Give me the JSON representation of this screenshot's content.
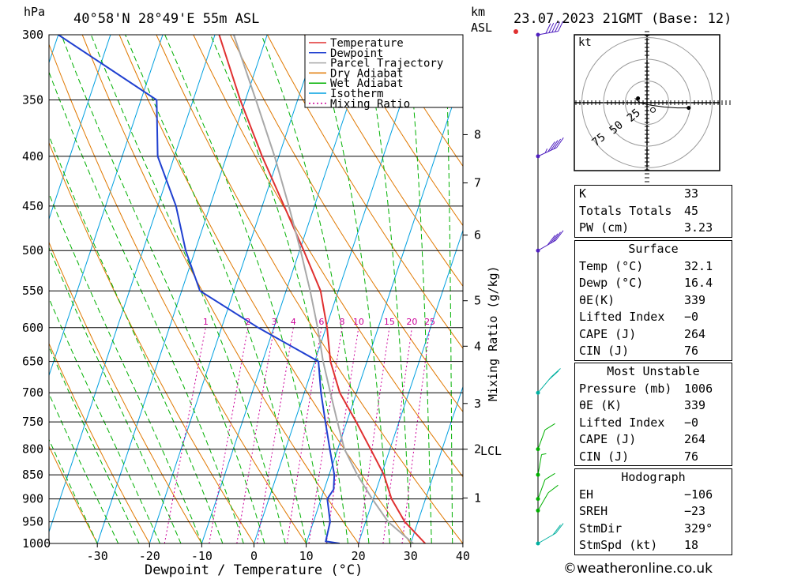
{
  "header": {
    "hpa_unit": "hPa",
    "location": "40°58'N  28°49'E  55m  ASL",
    "km_unit": "km",
    "asl_unit": "ASL",
    "datetime": "23.07.2023  21GMT  (Base: 12)"
  },
  "colors": {
    "temperature": "#e03030",
    "dewpoint": "#2040d0",
    "parcel": "#a8a8a8",
    "dry_adiabat": "#e07800",
    "wet_adiabat": "#00b000",
    "isotherm": "#00a0e0",
    "mixing_ratio": "#cc0099"
  },
  "chart_data": {
    "type": "line",
    "title": "40°58'N 28°49'E 55m ASL",
    "xlabel": "Dewpoint / Temperature (°C)",
    "ylabel": "hPa",
    "y2label": "Mixing Ratio (g/kg)",
    "xlim": [
      -40,
      40
    ],
    "x_ticks": [
      -30,
      -20,
      -10,
      0,
      10,
      20,
      30,
      40
    ],
    "pressure_levels": [
      300,
      350,
      400,
      450,
      500,
      550,
      600,
      650,
      700,
      750,
      800,
      850,
      900,
      950,
      1000
    ],
    "km_ticks": [
      {
        "label": "8",
        "p": 380
      },
      {
        "label": "7",
        "p": 426
      },
      {
        "label": "6",
        "p": 482
      },
      {
        "label": "5",
        "p": 563
      },
      {
        "label": "4",
        "p": 627
      },
      {
        "label": "3",
        "p": 718
      },
      {
        "label": "2",
        "p": 800
      },
      {
        "label": "1",
        "p": 898
      }
    ],
    "lcl_label": "LCL",
    "lcl_pressure": 799,
    "mixing_ratio_labels": [
      "1",
      "2",
      "3",
      "4",
      "6",
      "8",
      "10",
      "15",
      "20",
      "25"
    ],
    "mixing_ratio_values": [
      1,
      2,
      3,
      4,
      6,
      8,
      10,
      15,
      20,
      25
    ],
    "legend": [
      "Temperature",
      "Dewpoint",
      "Parcel Trajectory",
      "Dry Adiabat",
      "Wet Adiabat",
      "Isotherm",
      "Mixing Ratio"
    ],
    "series": [
      {
        "name": "Temperature",
        "points": [
          {
            "p": 1000,
            "t": 32.8
          },
          {
            "p": 950,
            "t": 27.5
          },
          {
            "p": 900,
            "t": 23.5
          },
          {
            "p": 850,
            "t": 20.5
          },
          {
            "p": 800,
            "t": 16.3
          },
          {
            "p": 750,
            "t": 11.8
          },
          {
            "p": 700,
            "t": 6.8
          },
          {
            "p": 650,
            "t": 3.0
          },
          {
            "p": 600,
            "t": 0.2
          },
          {
            "p": 550,
            "t": -3.4
          },
          {
            "p": 500,
            "t": -9.2
          },
          {
            "p": 450,
            "t": -15.8
          },
          {
            "p": 400,
            "t": -23.2
          },
          {
            "p": 350,
            "t": -31.0
          },
          {
            "p": 300,
            "t": -39.2
          }
        ]
      },
      {
        "name": "Dewpoint",
        "points": [
          {
            "p": 1000,
            "t": 16.4
          },
          {
            "p": 995,
            "t": 13.6
          },
          {
            "p": 950,
            "t": 13.2
          },
          {
            "p": 900,
            "t": 11.2
          },
          {
            "p": 880,
            "t": 11.8
          },
          {
            "p": 850,
            "t": 11.0
          },
          {
            "p": 800,
            "t": 8.5
          },
          {
            "p": 750,
            "t": 5.9
          },
          {
            "p": 700,
            "t": 3.2
          },
          {
            "p": 650,
            "t": 0.7
          },
          {
            "p": 600,
            "t": -13.0
          },
          {
            "p": 550,
            "t": -26.5
          },
          {
            "p": 500,
            "t": -31.8
          },
          {
            "p": 450,
            "t": -36.5
          },
          {
            "p": 400,
            "t": -43.2
          },
          {
            "p": 350,
            "t": -47.0
          },
          {
            "p": 300,
            "t": -70.0
          }
        ]
      },
      {
        "name": "Parcel Trajectory",
        "points": [
          {
            "p": 1000,
            "t": 30.5
          },
          {
            "p": 950,
            "t": 24.3
          },
          {
            "p": 900,
            "t": 19.8
          },
          {
            "p": 850,
            "t": 15.4
          },
          {
            "p": 800,
            "t": 11.3
          },
          {
            "p": 750,
            "t": 8.2
          },
          {
            "p": 700,
            "t": 5.0
          },
          {
            "p": 650,
            "t": 1.6
          },
          {
            "p": 600,
            "t": -1.6
          },
          {
            "p": 550,
            "t": -5.4
          },
          {
            "p": 500,
            "t": -9.8
          },
          {
            "p": 450,
            "t": -14.9
          },
          {
            "p": 400,
            "t": -20.8
          },
          {
            "p": 350,
            "t": -28.0
          },
          {
            "p": 300,
            "t": -36.4
          }
        ]
      }
    ],
    "wind_barbs": [
      {
        "p": 300,
        "dir": 280,
        "kt": 50
      },
      {
        "p": 400,
        "dir": 295,
        "kt": 45
      },
      {
        "p": 500,
        "dir": 300,
        "kt": 40
      },
      {
        "p": 700,
        "dir": 320,
        "kt": 20
      },
      {
        "p": 800,
        "dir": 340,
        "kt": 10
      },
      {
        "p": 850,
        "dir": 350,
        "kt": 5
      },
      {
        "p": 900,
        "dir": 340,
        "kt": 10
      },
      {
        "p": 925,
        "dir": 330,
        "kt": 10
      },
      {
        "p": 1000,
        "dir": 300,
        "kt": 20
      }
    ]
  },
  "hodograph": {
    "unit": "kt",
    "ring_labels": [
      "25",
      "50",
      "75"
    ],
    "ring_values": [
      25,
      50,
      75
    ],
    "points": [
      {
        "u": -14,
        "v": 5
      },
      {
        "u": -8,
        "v": 0
      },
      {
        "u": 0,
        "v": -2
      },
      {
        "u": 5,
        "v": -3
      },
      {
        "u": 20,
        "v": -5
      },
      {
        "u": 35,
        "v": -6
      },
      {
        "u": 48,
        "v": -6
      }
    ]
  },
  "indices": {
    "rows": [
      {
        "label": "K",
        "value": "33"
      },
      {
        "label": "Totals Totals",
        "value": "45"
      },
      {
        "label": "PW (cm)",
        "value": "3.23"
      }
    ],
    "surface": {
      "title": "Surface",
      "rows": [
        {
          "label": "Temp (°C)",
          "value": "32.1"
        },
        {
          "label": "Dewp (°C)",
          "value": "16.4"
        },
        {
          "label": "θE(K)",
          "value": "339"
        },
        {
          "label": "Lifted Index",
          "value": "−0"
        },
        {
          "label": "CAPE (J)",
          "value": "264"
        },
        {
          "label": "CIN (J)",
          "value": "76"
        }
      ]
    },
    "most_unstable": {
      "title": "Most Unstable",
      "rows": [
        {
          "label": "Pressure (mb)",
          "value": "1006"
        },
        {
          "label": "θE (K)",
          "value": "339"
        },
        {
          "label": "Lifted Index",
          "value": "−0"
        },
        {
          "label": "CAPE (J)",
          "value": "264"
        },
        {
          "label": "CIN (J)",
          "value": "76"
        }
      ]
    },
    "hodograph": {
      "title": "Hodograph",
      "rows": [
        {
          "label": "EH",
          "value": "−106"
        },
        {
          "label": "SREH",
          "value": "−23"
        },
        {
          "label": "StmDir",
          "value": "329°"
        },
        {
          "label": "StmSpd (kt)",
          "value": "18"
        }
      ]
    }
  },
  "footer": {
    "copyright": "©weatheronline.co.uk"
  }
}
